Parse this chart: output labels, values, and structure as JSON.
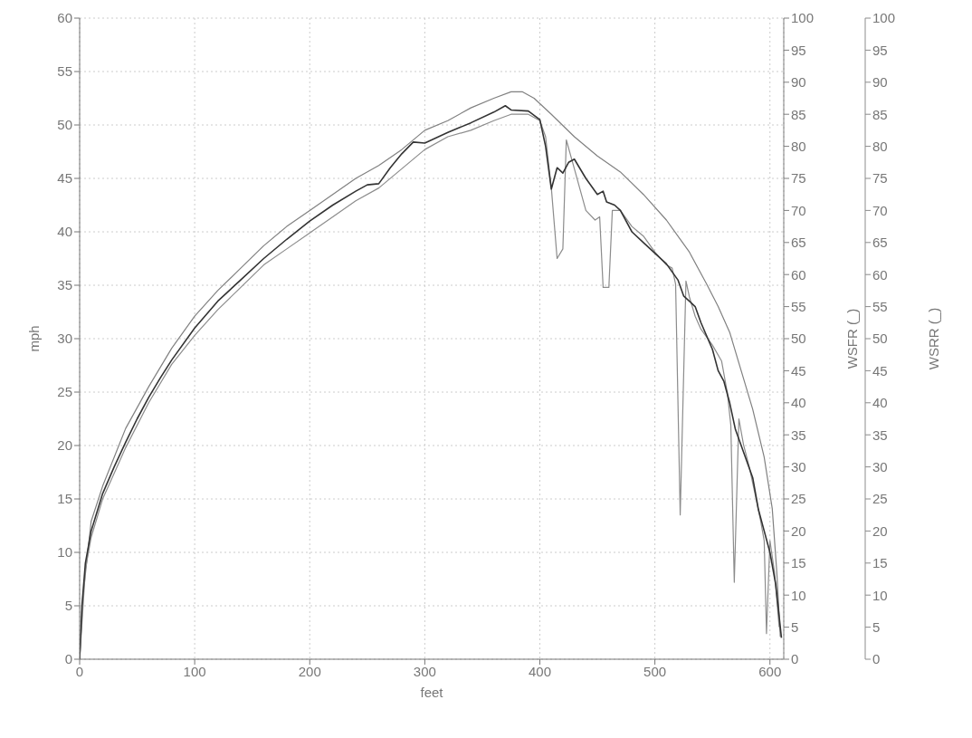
{
  "chart_data": {
    "type": "line",
    "xlabel": "feet",
    "ylabel": "mph",
    "y2label": "WSFR (_)",
    "y3label": "WSRR (_)",
    "xlim": [
      0,
      612
    ],
    "xticks": [
      0,
      100,
      200,
      300,
      400,
      500,
      600
    ],
    "ylim": [
      0,
      60
    ],
    "yticks": [
      0,
      5,
      10,
      15,
      20,
      25,
      30,
      35,
      40,
      45,
      50,
      55,
      60
    ],
    "y2lim": [
      0,
      100
    ],
    "y2ticks": [
      0,
      5,
      10,
      15,
      20,
      25,
      30,
      35,
      40,
      45,
      50,
      55,
      60,
      65,
      70,
      75,
      80,
      85,
      90,
      95,
      100
    ],
    "y3lim": [
      0,
      100
    ],
    "y3ticks": [
      0,
      5,
      10,
      15,
      20,
      25,
      30,
      35,
      40,
      45,
      50,
      55,
      60,
      65,
      70,
      75,
      80,
      85,
      90,
      95,
      100
    ],
    "grid": true,
    "marker": "none",
    "line_style": "solid",
    "series": [
      {
        "color": "#808080",
        "axis": "y2",
        "x": [
          0,
          3,
          10,
          20,
          30,
          40,
          60,
          80,
          100,
          120,
          140,
          160,
          180,
          200,
          220,
          240,
          260,
          280,
          300,
          320,
          340,
          360,
          375,
          385,
          395,
          410,
          430,
          450,
          470,
          490,
          510,
          530,
          545,
          555,
          565,
          575,
          585,
          595,
          602,
          606,
          609
        ],
        "values": [
          0,
          10,
          21.5,
          27,
          31.5,
          36,
          42.5,
          48.5,
          53.5,
          57.5,
          61,
          64.5,
          67.5,
          70,
          72.5,
          75,
          77,
          79.5,
          82.5,
          84,
          86,
          87.5,
          88.5,
          88.5,
          87.5,
          85,
          81.5,
          78.5,
          76,
          72.5,
          68.5,
          63.5,
          58.5,
          55,
          51,
          45,
          39,
          31.5,
          23.5,
          13.5,
          3.5
        ]
      },
      {
        "color": "#8c8c8c",
        "axis": "y3",
        "x": [
          0,
          5,
          10,
          20,
          30,
          40,
          60,
          80,
          100,
          120,
          140,
          160,
          180,
          200,
          220,
          240,
          260,
          280,
          300,
          320,
          340,
          360,
          375,
          390,
          400,
          405,
          410,
          415,
          420,
          423,
          430,
          440,
          448,
          452,
          455,
          460,
          463,
          470,
          480,
          490,
          500,
          510,
          515,
          518,
          522,
          527,
          530,
          535,
          540,
          550,
          558,
          563,
          566,
          569,
          573,
          577,
          582,
          588,
          592,
          595,
          597,
          600,
          604,
          608
        ],
        "values": [
          0,
          14,
          19,
          25,
          29,
          33,
          40,
          46,
          50.5,
          54.5,
          58,
          61.5,
          64,
          66.5,
          69,
          71.5,
          73.5,
          76.5,
          79.5,
          81.5,
          82.5,
          84,
          85,
          85,
          84,
          81.5,
          73.5,
          62.5,
          64,
          81,
          76.5,
          70,
          68.5,
          69,
          58,
          58,
          70,
          70,
          67.5,
          66,
          63.5,
          61.5,
          61,
          58.5,
          22.5,
          59,
          56.5,
          53.5,
          51.5,
          49,
          46.5,
          41.5,
          36.5,
          12,
          37.5,
          33.5,
          30,
          25,
          21.5,
          18.5,
          4,
          18.5,
          13.5,
          5
        ]
      },
      {
        "color": "#333333",
        "x": [
          0,
          2,
          5,
          10,
          20,
          30,
          40,
          50,
          60,
          70,
          80,
          100,
          120,
          140,
          160,
          180,
          200,
          220,
          240,
          250,
          260,
          270,
          280,
          290,
          300,
          320,
          340,
          360,
          370,
          375,
          390,
          400,
          405,
          410,
          415,
          420,
          425,
          430,
          440,
          450,
          455,
          458,
          465,
          470,
          480,
          490,
          500,
          510,
          520,
          525,
          530,
          535,
          540,
          550,
          555,
          560,
          565,
          570,
          575,
          580,
          585,
          590,
          595,
          600,
          605,
          610
        ],
        "values": [
          0,
          5,
          9,
          12,
          15.5,
          18,
          20.3,
          22.5,
          24.5,
          26.3,
          28,
          31,
          33.5,
          35.5,
          37.5,
          39.3,
          41,
          42.5,
          43.8,
          44.4,
          44.5,
          46,
          47.3,
          48.4,
          48.3,
          49.3,
          50.2,
          51.2,
          51.8,
          51.4,
          51.3,
          50.5,
          48,
          44,
          46,
          45.5,
          46.5,
          46.8,
          45,
          43.5,
          43.8,
          42.8,
          42.5,
          42,
          40,
          39,
          38,
          37,
          35.5,
          34,
          33.5,
          33,
          31.5,
          29,
          27,
          26,
          24,
          21.5,
          20,
          18.5,
          17,
          14,
          12,
          10,
          7,
          2
        ]
      }
    ]
  }
}
